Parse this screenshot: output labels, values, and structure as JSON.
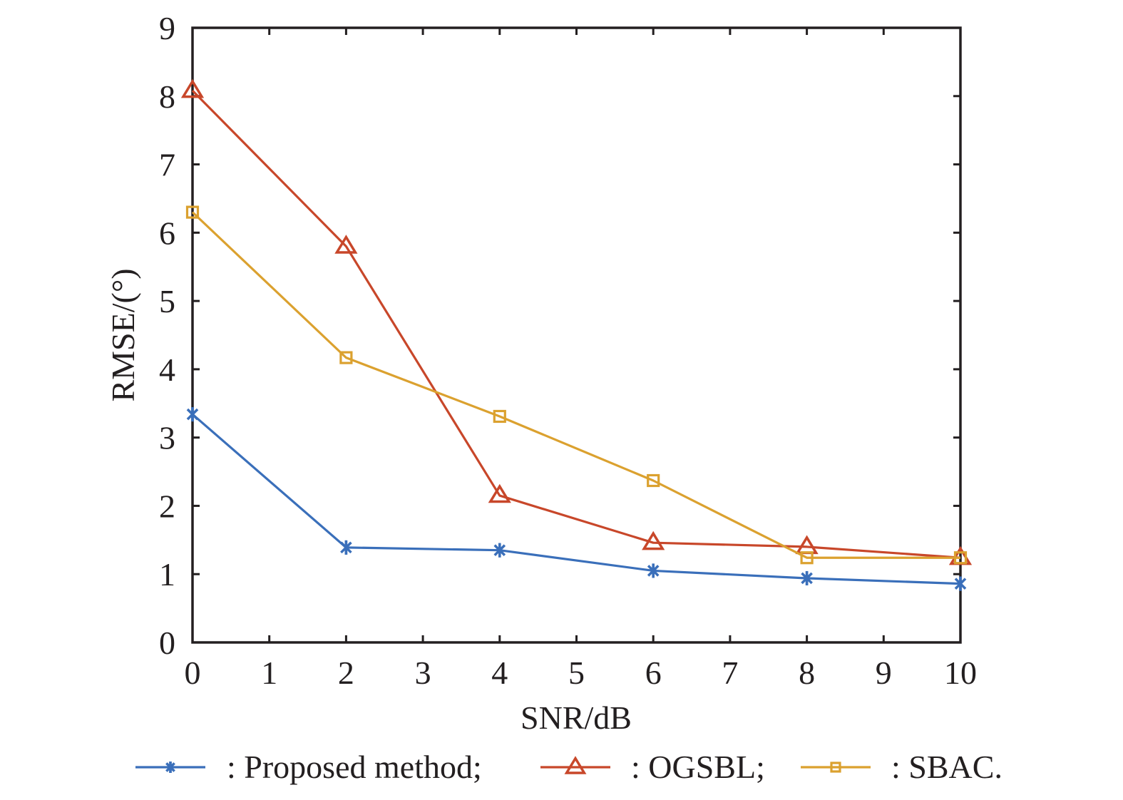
{
  "chart_data": {
    "type": "line",
    "title": "",
    "xlabel": "SNR/dB",
    "ylabel": "RMSE/(°)",
    "xlim": [
      0,
      10
    ],
    "ylim": [
      0,
      9
    ],
    "x_ticks": [
      "0",
      "1",
      "2",
      "3",
      "4",
      "5",
      "6",
      "7",
      "8",
      "9",
      "10"
    ],
    "y_ticks": [
      "0",
      "1",
      "2",
      "3",
      "4",
      "5",
      "6",
      "7",
      "8",
      "9"
    ],
    "grid": false,
    "legend_position": "bottom",
    "x": [
      0,
      2,
      4,
      6,
      8,
      10
    ],
    "series": [
      {
        "name": ": Proposed method;",
        "marker": "asterisk",
        "color": "#3a6fba",
        "values": [
          3.34,
          1.39,
          1.35,
          1.05,
          0.94,
          0.86
        ]
      },
      {
        "name": ": OGSBL;",
        "marker": "triangle",
        "color": "#c8472a",
        "values": [
          8.08,
          5.8,
          2.15,
          1.46,
          1.4,
          1.24
        ]
      },
      {
        "name": ": SBAC.",
        "marker": "square",
        "color": "#dba12f",
        "values": [
          6.3,
          4.17,
          3.31,
          2.37,
          1.24,
          1.24
        ]
      }
    ]
  }
}
